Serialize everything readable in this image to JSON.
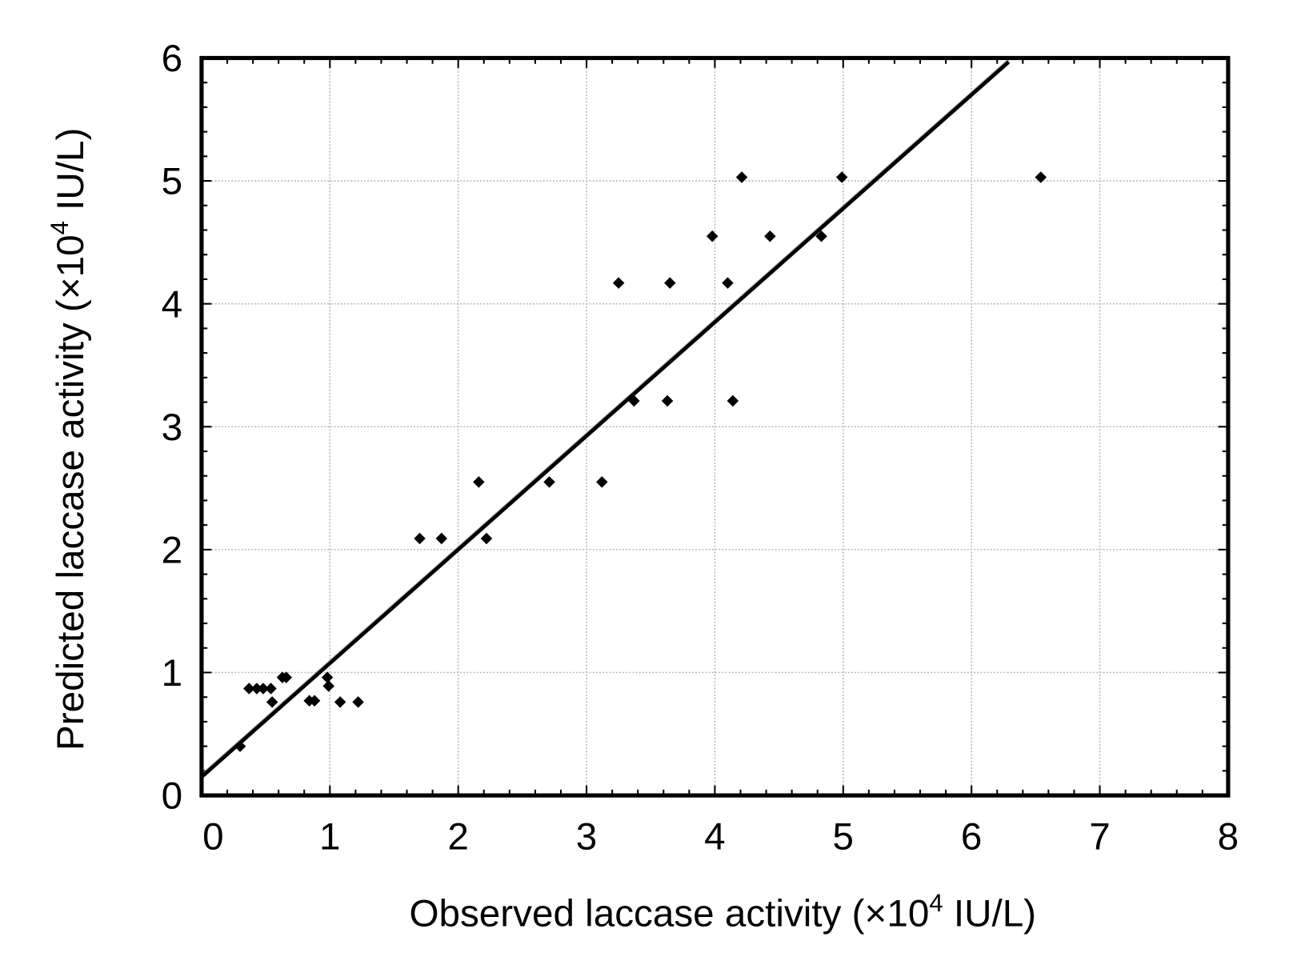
{
  "chart_data": {
    "type": "scatter",
    "title": "",
    "xlabel": "Observed laccase activity (×10",
    "xlabel_sup": "4",
    "xlabel_end": " IU/L)",
    "ylabel": "Predicted laccase activity (×10",
    "ylabel_sup": "4",
    "ylabel_end": " IU/L)",
    "xlim": [
      0,
      8
    ],
    "ylim": [
      0,
      6
    ],
    "xticks": [
      "0",
      "1",
      "2",
      "3",
      "4",
      "5",
      "6",
      "7",
      "8"
    ],
    "yticks": [
      "0",
      "1",
      "2",
      "3",
      "4",
      "5",
      "6"
    ],
    "grid": true,
    "colors": {
      "points": "#000000",
      "line": "#000000",
      "line2": "#999999",
      "grid": "#bbbbbb"
    },
    "fit_line": {
      "intercept": 0.15,
      "slope": 0.925,
      "x_end": 6.29
    },
    "points": [
      [
        0.3,
        0.4
      ],
      [
        0.37,
        0.87
      ],
      [
        0.43,
        0.87
      ],
      [
        0.48,
        0.87
      ],
      [
        0.54,
        0.87
      ],
      [
        0.55,
        0.76
      ],
      [
        0.63,
        0.96
      ],
      [
        0.66,
        0.96
      ],
      [
        0.84,
        0.77
      ],
      [
        0.88,
        0.77
      ],
      [
        0.98,
        0.96
      ],
      [
        0.99,
        0.89
      ],
      [
        1.08,
        0.76
      ],
      [
        1.22,
        0.76
      ],
      [
        1.7,
        2.09
      ],
      [
        1.87,
        2.09
      ],
      [
        2.16,
        2.55
      ],
      [
        2.22,
        2.09
      ],
      [
        2.71,
        2.55
      ],
      [
        3.12,
        2.55
      ],
      [
        3.25,
        4.17
      ],
      [
        3.37,
        3.21
      ],
      [
        3.63,
        3.21
      ],
      [
        3.65,
        4.17
      ],
      [
        3.98,
        4.55
      ],
      [
        4.1,
        4.17
      ],
      [
        4.14,
        3.21
      ],
      [
        4.21,
        5.03
      ],
      [
        4.43,
        4.55
      ],
      [
        4.83,
        4.55
      ],
      [
        4.99,
        5.03
      ],
      [
        6.54,
        5.03
      ]
    ]
  }
}
